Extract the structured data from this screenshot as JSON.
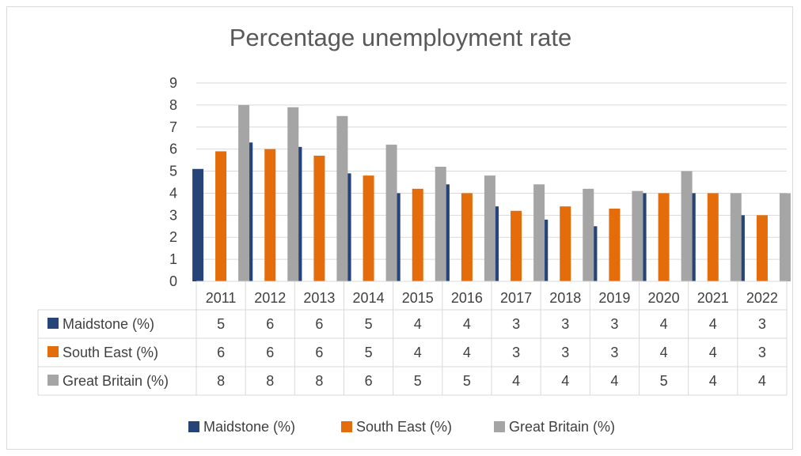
{
  "chart_data": {
    "type": "bar",
    "title": "Percentage unemployment rate",
    "categories": [
      "2011",
      "2012",
      "2013",
      "2014",
      "2015",
      "2016",
      "2017",
      "2018",
      "2019",
      "2020",
      "2021",
      "2022"
    ],
    "ylim": [
      0,
      9
    ],
    "yticks": [
      "0",
      "1",
      "2",
      "3",
      "4",
      "5",
      "6",
      "7",
      "8",
      "9"
    ],
    "grid": true,
    "legend_position": "bottom",
    "series": [
      {
        "name": "Maidstone (%)",
        "color": "#264478",
        "values": [
          5.1,
          6.3,
          6.1,
          4.9,
          4.0,
          4.4,
          3.4,
          2.8,
          2.5,
          4.0,
          4.0,
          3.0
        ],
        "table": [
          "5",
          "6",
          "6",
          "5",
          "4",
          "4",
          "3",
          "3",
          "3",
          "4",
          "4",
          "3"
        ]
      },
      {
        "name": "South East (%)",
        "color": "#E46C0A",
        "values": [
          5.9,
          6.0,
          5.7,
          4.8,
          4.2,
          4.0,
          3.2,
          3.4,
          3.3,
          4.0,
          4.0,
          3.0
        ],
        "table": [
          "6",
          "6",
          "6",
          "5",
          "4",
          "4",
          "3",
          "3",
          "3",
          "4",
          "4",
          "3"
        ]
      },
      {
        "name": "Great Britain (%)",
        "color": "#A5A5A5",
        "values": [
          8.0,
          7.9,
          7.5,
          6.2,
          5.2,
          4.8,
          4.4,
          4.2,
          4.1,
          5.0,
          4.0,
          4.0
        ],
        "table": [
          "8",
          "8",
          "8",
          "6",
          "5",
          "5",
          "4",
          "4",
          "4",
          "5",
          "4",
          "4"
        ]
      }
    ]
  }
}
